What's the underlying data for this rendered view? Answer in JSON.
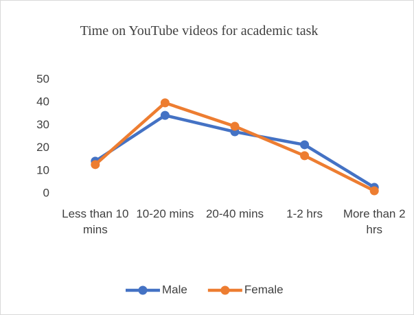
{
  "chart_data": {
    "type": "line",
    "title": "Time on YouTube videos for academic task",
    "categories": [
      "Less than 10 mins",
      "10-20 mins",
      "20-40 mins",
      "1-2 hrs",
      "More than 2 hrs"
    ],
    "series": [
      {
        "name": "Male",
        "color": "#4472c4",
        "values": [
          14.2,
          34.3,
          27.1,
          21.4,
          2.7
        ]
      },
      {
        "name": "Female",
        "color": "#ed7d31",
        "values": [
          12.7,
          39.8,
          29.5,
          16.6,
          1.2
        ]
      }
    ],
    "ylim": [
      0,
      50
    ],
    "yticks": [
      0,
      10,
      20,
      30,
      40,
      50
    ],
    "grid": false,
    "legend": "bottom"
  }
}
